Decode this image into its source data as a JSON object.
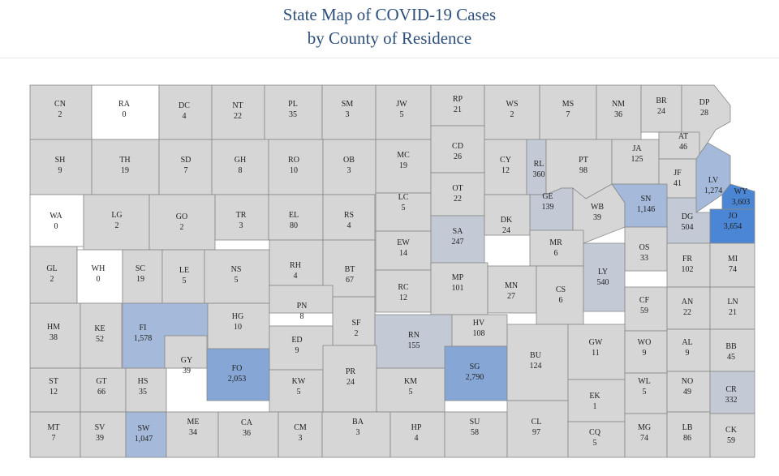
{
  "title": {
    "line1": "State Map of COVID-19 Cases",
    "line2": "by County of Residence"
  },
  "colors": {
    "zero": "#ffffff",
    "low": "#d6d6d6",
    "mid": "#c3cad6",
    "high": "#a5bada",
    "higher": "#86a6d6",
    "highest": "#4a86d4",
    "border": "#888888",
    "title": "#2e4f7a"
  },
  "counties": [
    {
      "abbr": "CN",
      "cases": "2"
    },
    {
      "abbr": "RA",
      "cases": "0"
    },
    {
      "abbr": "DC",
      "cases": "4"
    },
    {
      "abbr": "NT",
      "cases": "22"
    },
    {
      "abbr": "PL",
      "cases": "35"
    },
    {
      "abbr": "SM",
      "cases": "3"
    },
    {
      "abbr": "JW",
      "cases": "5"
    },
    {
      "abbr": "RP",
      "cases": "21"
    },
    {
      "abbr": "WS",
      "cases": "2"
    },
    {
      "abbr": "MS",
      "cases": "7"
    },
    {
      "abbr": "NM",
      "cases": "36"
    },
    {
      "abbr": "BR",
      "cases": "24"
    },
    {
      "abbr": "DP",
      "cases": "28"
    },
    {
      "abbr": "SH",
      "cases": "9"
    },
    {
      "abbr": "TH",
      "cases": "19"
    },
    {
      "abbr": "SD",
      "cases": "7"
    },
    {
      "abbr": "GH",
      "cases": "8"
    },
    {
      "abbr": "RO",
      "cases": "10"
    },
    {
      "abbr": "OB",
      "cases": "3"
    },
    {
      "abbr": "MC",
      "cases": "19"
    },
    {
      "abbr": "CD",
      "cases": "26"
    },
    {
      "abbr": "CY",
      "cases": "12"
    },
    {
      "abbr": "RL",
      "cases": "360"
    },
    {
      "abbr": "PT",
      "cases": "98"
    },
    {
      "abbr": "JA",
      "cases": "125"
    },
    {
      "abbr": "AT",
      "cases": "46"
    },
    {
      "abbr": "JF",
      "cases": "41"
    },
    {
      "abbr": "LV",
      "cases": "1,274"
    },
    {
      "abbr": "WY",
      "cases": "3,603"
    },
    {
      "abbr": "WA",
      "cases": "0"
    },
    {
      "abbr": "LG",
      "cases": "2"
    },
    {
      "abbr": "GO",
      "cases": "2"
    },
    {
      "abbr": "TR",
      "cases": "3"
    },
    {
      "abbr": "EL",
      "cases": "80"
    },
    {
      "abbr": "RS",
      "cases": "4"
    },
    {
      "abbr": "LC",
      "cases": "5"
    },
    {
      "abbr": "OT",
      "cases": "22"
    },
    {
      "abbr": "GE",
      "cases": "139"
    },
    {
      "abbr": "WB",
      "cases": "39"
    },
    {
      "abbr": "SN",
      "cases": "1,146"
    },
    {
      "abbr": "DG",
      "cases": "504"
    },
    {
      "abbr": "JO",
      "cases": "3,654"
    },
    {
      "abbr": "SA",
      "cases": "247"
    },
    {
      "abbr": "DK",
      "cases": "24"
    },
    {
      "abbr": "EW",
      "cases": "14"
    },
    {
      "abbr": "MR",
      "cases": "6"
    },
    {
      "abbr": "OS",
      "cases": "33"
    },
    {
      "abbr": "GL",
      "cases": "2"
    },
    {
      "abbr": "WH",
      "cases": "0"
    },
    {
      "abbr": "SC",
      "cases": "19"
    },
    {
      "abbr": "LE",
      "cases": "5"
    },
    {
      "abbr": "NS",
      "cases": "5"
    },
    {
      "abbr": "RH",
      "cases": "4"
    },
    {
      "abbr": "BT",
      "cases": "67"
    },
    {
      "abbr": "RC",
      "cases": "12"
    },
    {
      "abbr": "MP",
      "cases": "101"
    },
    {
      "abbr": "MN",
      "cases": "27"
    },
    {
      "abbr": "CS",
      "cases": "6"
    },
    {
      "abbr": "LY",
      "cases": "540"
    },
    {
      "abbr": "FR",
      "cases": "102"
    },
    {
      "abbr": "MI",
      "cases": "74"
    },
    {
      "abbr": "HM",
      "cases": "38"
    },
    {
      "abbr": "KE",
      "cases": "52"
    },
    {
      "abbr": "FI",
      "cases": "1,578"
    },
    {
      "abbr": "HG",
      "cases": "10"
    },
    {
      "abbr": "PN",
      "cases": "8"
    },
    {
      "abbr": "SF",
      "cases": "2"
    },
    {
      "abbr": "ED",
      "cases": "9"
    },
    {
      "abbr": "RN",
      "cases": "155"
    },
    {
      "abbr": "HV",
      "cases": "108"
    },
    {
      "abbr": "CF",
      "cases": "59"
    },
    {
      "abbr": "AN",
      "cases": "22"
    },
    {
      "abbr": "LN",
      "cases": "21"
    },
    {
      "abbr": "GY",
      "cases": "39"
    },
    {
      "abbr": "FO",
      "cases": "2,053"
    },
    {
      "abbr": "SG",
      "cases": "2,790"
    },
    {
      "abbr": "BU",
      "cases": "124"
    },
    {
      "abbr": "GW",
      "cases": "11"
    },
    {
      "abbr": "WO",
      "cases": "9"
    },
    {
      "abbr": "AL",
      "cases": "9"
    },
    {
      "abbr": "BB",
      "cases": "45"
    },
    {
      "abbr": "ST",
      "cases": "12"
    },
    {
      "abbr": "GT",
      "cases": "66"
    },
    {
      "abbr": "HS",
      "cases": "35"
    },
    {
      "abbr": "KW",
      "cases": "5"
    },
    {
      "abbr": "PR",
      "cases": "24"
    },
    {
      "abbr": "KM",
      "cases": "5"
    },
    {
      "abbr": "EK",
      "cases": "1"
    },
    {
      "abbr": "WL",
      "cases": "5"
    },
    {
      "abbr": "NO",
      "cases": "49"
    },
    {
      "abbr": "CR",
      "cases": "332"
    },
    {
      "abbr": "MT",
      "cases": "7"
    },
    {
      "abbr": "SV",
      "cases": "39"
    },
    {
      "abbr": "SW",
      "cases": "1,047"
    },
    {
      "abbr": "ME",
      "cases": "34"
    },
    {
      "abbr": "CA",
      "cases": "36"
    },
    {
      "abbr": "CM",
      "cases": "3"
    },
    {
      "abbr": "BA",
      "cases": "3"
    },
    {
      "abbr": "HP",
      "cases": "4"
    },
    {
      "abbr": "SU",
      "cases": "58"
    },
    {
      "abbr": "CL",
      "cases": "97"
    },
    {
      "abbr": "CQ",
      "cases": "5"
    },
    {
      "abbr": "MG",
      "cases": "74"
    },
    {
      "abbr": "LB",
      "cases": "86"
    },
    {
      "abbr": "CK",
      "cases": "59"
    }
  ]
}
